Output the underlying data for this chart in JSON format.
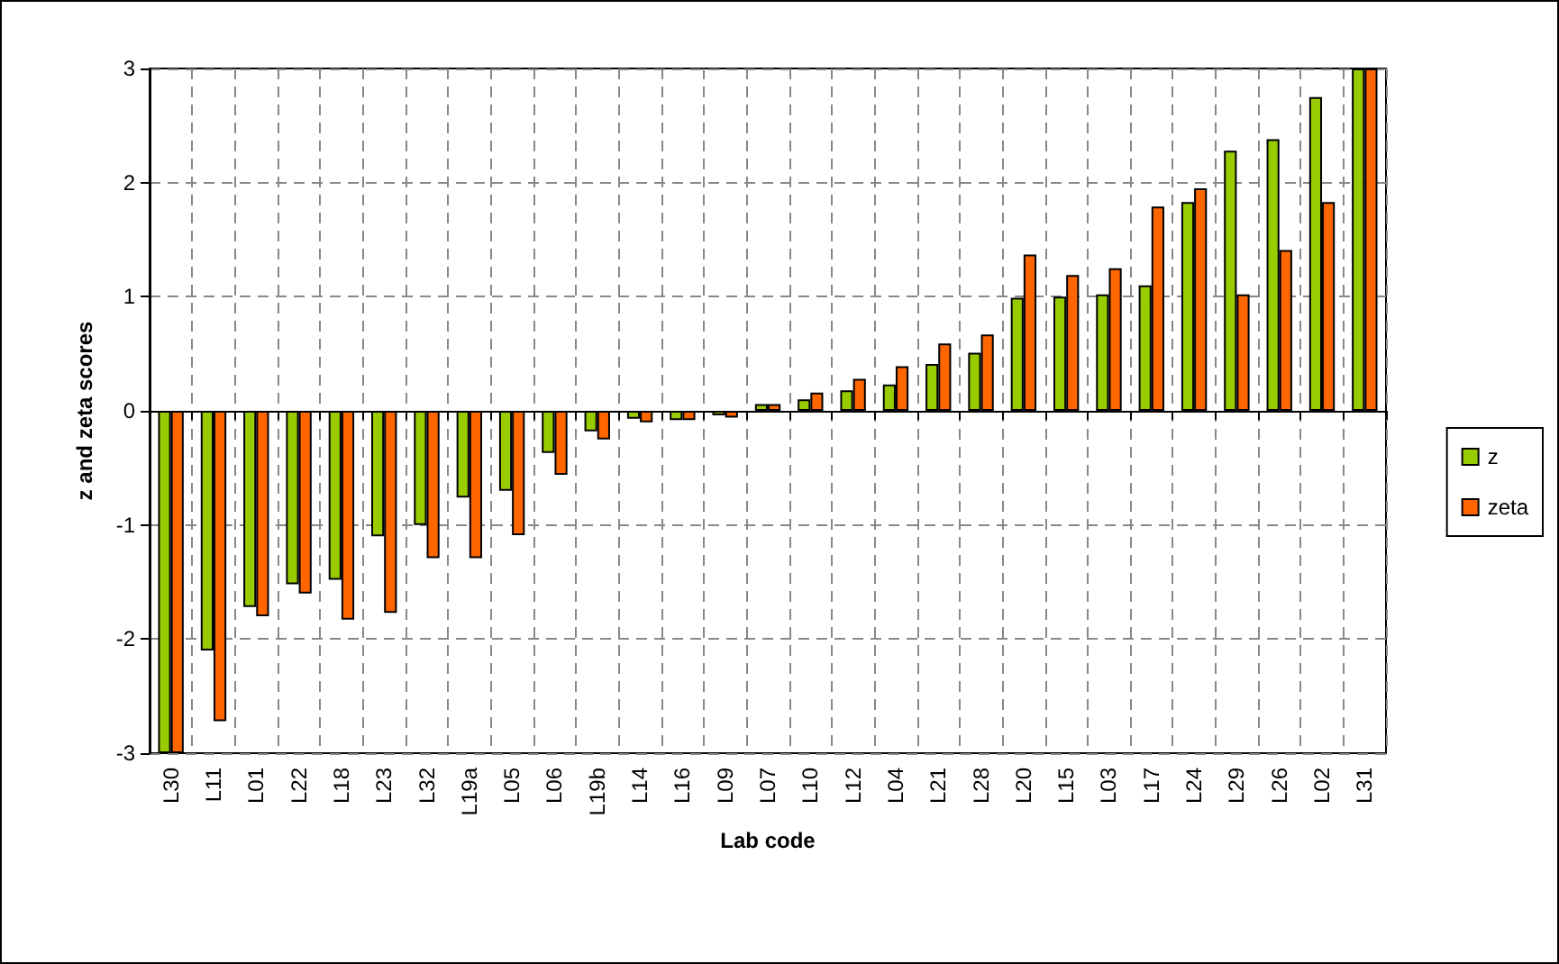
{
  "chart_data": {
    "type": "bar",
    "xlabel": "Lab code",
    "ylabel": "z and zeta scores",
    "categories": [
      "L30",
      "L11",
      "L01",
      "L22",
      "L18",
      "L23",
      "L32",
      "L19a",
      "L05",
      "L06",
      "L19b",
      "L14",
      "L16",
      "L09",
      "L07",
      "L10",
      "L12",
      "L04",
      "L21",
      "L28",
      "L20",
      "L15",
      "L03",
      "L17",
      "L24",
      "L29",
      "L26",
      "L02",
      "L31"
    ],
    "series": [
      {
        "name": "z",
        "color": "#99cc00",
        "values": [
          -3,
          -2.1,
          -1.72,
          -1.52,
          -1.48,
          -1.1,
          -1.0,
          -0.76,
          -0.7,
          -0.37,
          -0.18,
          -0.07,
          -0.08,
          -0.04,
          0.06,
          0.1,
          0.18,
          0.23,
          0.41,
          0.51,
          0.99,
          1.0,
          1.02,
          1.1,
          1.83,
          2.28,
          2.38,
          2.75,
          3
        ]
      },
      {
        "name": "zeta",
        "color": "#ff6600",
        "values": [
          -3,
          -2.72,
          -1.8,
          -1.6,
          -1.83,
          -1.77,
          -1.29,
          -1.29,
          -1.09,
          -0.56,
          -0.25,
          -0.1,
          -0.08,
          -0.06,
          0.06,
          0.16,
          0.28,
          0.39,
          0.59,
          0.67,
          1.37,
          1.19,
          1.25,
          1.79,
          1.95,
          1.02,
          1.41,
          1.83,
          3
        ]
      }
    ],
    "ylim": [
      -3,
      3
    ],
    "yticks": [
      -3,
      -2,
      -1,
      0,
      1,
      2,
      3
    ],
    "grid": true,
    "legend": "right"
  }
}
